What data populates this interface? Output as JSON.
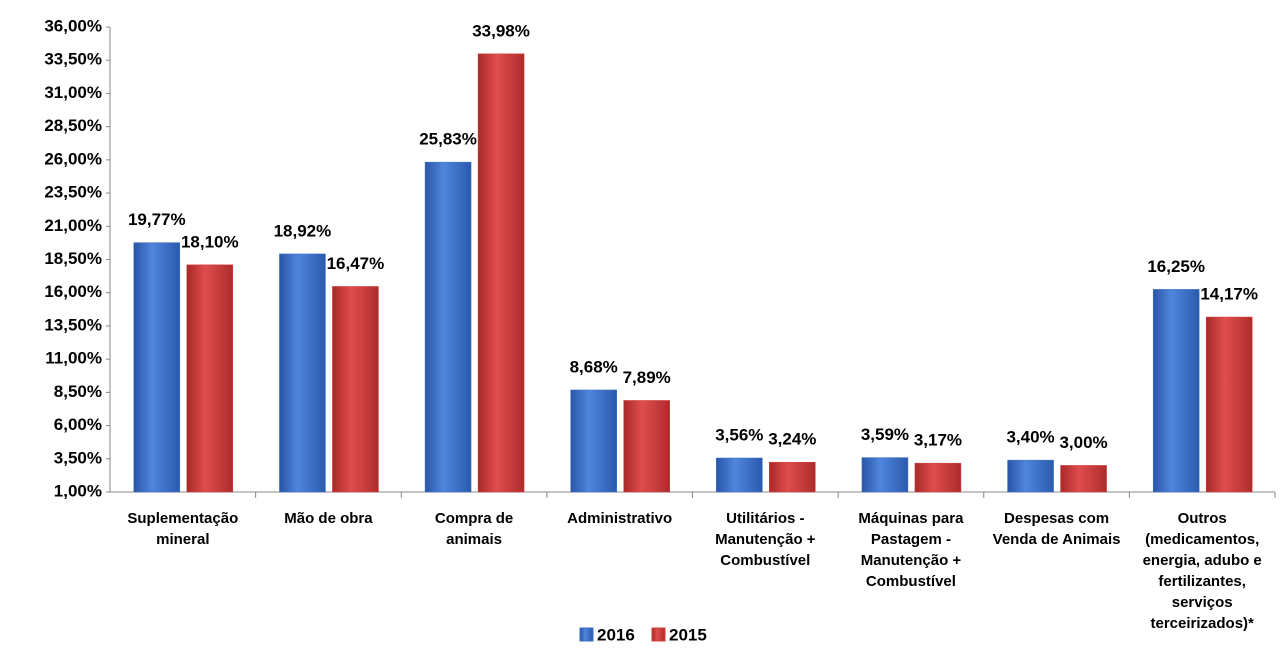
{
  "chart_data": {
    "type": "bar",
    "categories": [
      "Suplementação mineral",
      "Mão de obra",
      "Compra de animais",
      "Administrativo",
      "Utilitários - Manutenção + Combustível",
      "Máquinas para Pastagem - Manutenção + Combustível",
      "Despesas com Venda de Animais",
      "Outros (medicamentos, energia, adubo e fertilizantes, serviços terceirizados)*"
    ],
    "series": [
      {
        "name": "2016",
        "color": "#3b6fc6",
        "values": [
          19.77,
          18.92,
          25.83,
          8.68,
          3.56,
          3.59,
          3.4,
          16.25
        ],
        "value_labels": [
          "19,77%",
          "18,92%",
          "25,83%",
          "8,68%",
          "3,56%",
          "3,59%",
          "3,40%",
          "16,25%"
        ]
      },
      {
        "name": "2015",
        "color": "#d23c3c",
        "values": [
          18.1,
          16.47,
          33.98,
          7.89,
          3.24,
          3.17,
          3.0,
          14.17
        ],
        "value_labels": [
          "18,10%",
          "16,47%",
          "33,98%",
          "7,89%",
          "3,24%",
          "3,17%",
          "3,00%",
          "14,17%"
        ]
      }
    ],
    "ylim": [
      1,
      36
    ],
    "yticks": [
      {
        "value": 1,
        "label": "1,00%"
      },
      {
        "value": 3.5,
        "label": "3,50%"
      },
      {
        "value": 6,
        "label": "6,00%"
      },
      {
        "value": 8.5,
        "label": "8,50%"
      },
      {
        "value": 11,
        "label": "11,00%"
      },
      {
        "value": 13.5,
        "label": "13,50%"
      },
      {
        "value": 16,
        "label": "16,00%"
      },
      {
        "value": 18.5,
        "label": "18,50%"
      },
      {
        "value": 21,
        "label": "21,00%"
      },
      {
        "value": 23.5,
        "label": "23,50%"
      },
      {
        "value": 26,
        "label": "26,00%"
      },
      {
        "value": 28.5,
        "label": "28,50%"
      },
      {
        "value": 31,
        "label": "31,00%"
      },
      {
        "value": 33.5,
        "label": "33,50%"
      },
      {
        "value": 36,
        "label": "36,00%"
      }
    ],
    "grid": false,
    "legend": "bottom"
  }
}
